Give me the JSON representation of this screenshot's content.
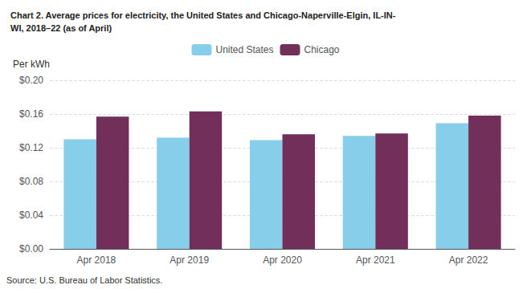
{
  "chart_data": {
    "type": "bar",
    "title": "Chart 2. Average prices for electricity, the United States and Chicago-Naperville-Elgin, IL-IN-\nWI, 2018–22 (as of April)",
    "ylabel": "Per kWh",
    "annotations": [
      "Source: U.S. Bureau of Labor Statistics."
    ],
    "categories": [
      "Apr 2018",
      "Apr 2019",
      "Apr 2020",
      "Apr 2021",
      "Apr 2022"
    ],
    "series": [
      {
        "name": "United States",
        "color": "#87CEEB",
        "values": [
          0.13,
          0.132,
          0.129,
          0.134,
          0.149
        ]
      },
      {
        "name": "Chicago",
        "color": "#722F5A",
        "values": [
          0.157,
          0.163,
          0.136,
          0.137,
          0.158
        ]
      }
    ],
    "ylim": [
      0,
      0.2
    ],
    "yticks": [
      {
        "value": 0.0,
        "label": "$0.00"
      },
      {
        "value": 0.04,
        "label": "$0.04"
      },
      {
        "value": 0.08,
        "label": "$0.08"
      },
      {
        "value": 0.12,
        "label": "$0.12"
      },
      {
        "value": 0.16,
        "label": "$0.16"
      },
      {
        "value": 0.2,
        "label": "$0.20"
      }
    ],
    "grid": true,
    "legend": "top"
  }
}
